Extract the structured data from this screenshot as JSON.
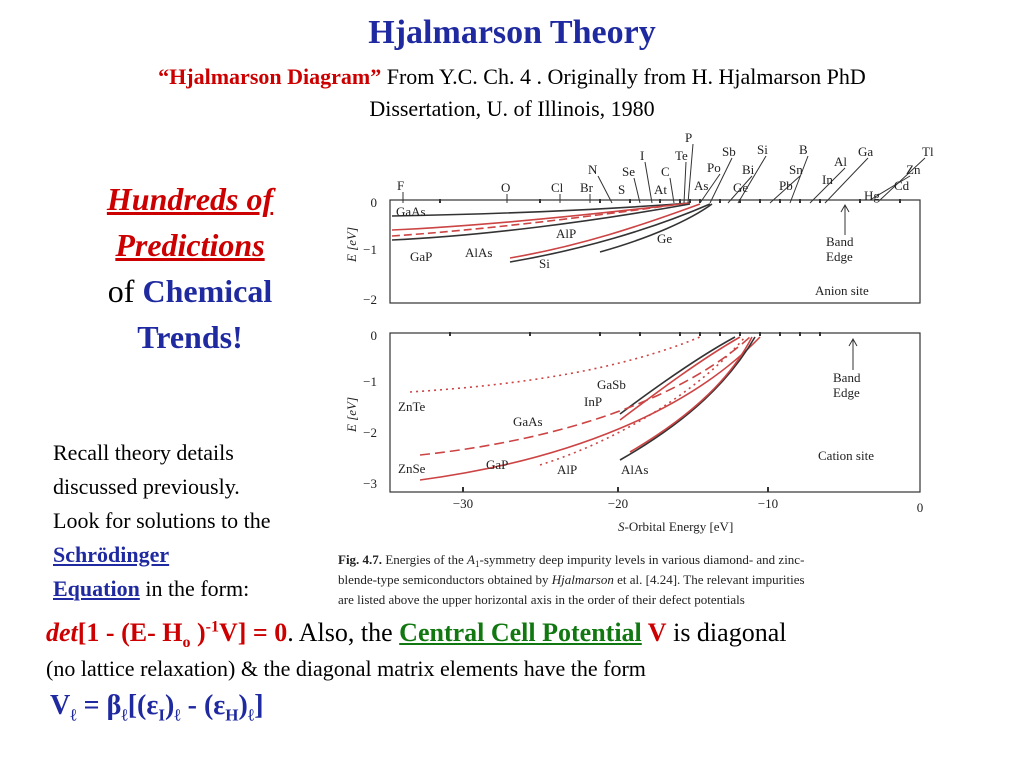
{
  "title": "Hjalmarson Theory",
  "subtitle": {
    "quote": "“Hjalmarson Diagram”",
    "line1": " From Y.C. Ch. 4 . Originally from H. Hjalmarson PhD",
    "line2": "Dissertation, U. of Illinois, 1980"
  },
  "heading": {
    "line1": "Hundreds of ",
    "line2": "Predictions",
    "of": "of ",
    "chemical": "Chemical",
    "trends": "Trends!"
  },
  "recall": {
    "lines": [
      "Recall theory details",
      "discussed previously.",
      "Look for solutions to the"
    ],
    "link1": "Schrödinger ",
    "link2": "Equation",
    "tail": " in the form:"
  },
  "equation": {
    "det": "det",
    "p1": "[1 - (E- H",
    "sub_o": "o",
    "p2": " )",
    "sup": "-1",
    "p3": "V] = 0",
    "p4": ". Also, the ",
    "ccp": "Central Cell Potential",
    "v": " V",
    "p5": " is diagonal"
  },
  "line2": "(no lattice relaxation) & the diagonal matrix elements have the form",
  "formula": [
    "V",
    "ℓ",
    " =  β",
    "ℓ",
    "[(ε",
    "I",
    ")",
    "ℓ",
    " - (ε",
    "H",
    ")",
    "ℓ",
    "]"
  ],
  "figure": {
    "elements": [
      "F",
      "O",
      "Cl",
      "Br",
      "N",
      "S",
      "Se",
      "I",
      "At",
      "C",
      "Te",
      "P",
      "As",
      "Po",
      "Sb",
      "Ge",
      "Bi",
      "Si",
      "Pb",
      "Sn",
      "B",
      "In",
      "Al",
      "Ga",
      "Hg",
      "Cd",
      "Zn",
      "Tl"
    ],
    "top": {
      "yticks": [
        "0",
        "−1",
        "−2"
      ],
      "ylabel": "E [eV]",
      "labels": [
        "GaAs",
        "GaP",
        "AlAs",
        "AlP",
        "Si",
        "Ge"
      ],
      "band_edge": [
        "Band",
        "Edge"
      ],
      "site": "Anion site"
    },
    "bottom": {
      "yticks": [
        "0",
        "−1",
        "−2",
        "−3"
      ],
      "ylabel": "E [eV]",
      "labels": [
        "GaSb",
        "InP",
        "ZnTe",
        "GaAs",
        "ZnSe",
        "GaP",
        "AlP",
        "AlAs"
      ],
      "band_edge": [
        "Band",
        "Edge"
      ],
      "site": "Cation site"
    },
    "xticks": [
      "−30",
      "−20",
      "−10",
      "0"
    ],
    "xlabel": {
      "s": "S",
      "rest": "-Orbital Energy [eV]"
    },
    "caption": {
      "fig": "Fig. 4.7.",
      "a": " Energies of the ",
      "A": "A",
      "one": "1",
      "b": "-symmetry deep impurity levels in various diamond- and zinc-",
      "line2a": "blende-type semiconductors obtained by ",
      "author": "Hjalmarson",
      "line2b": " et al. [4.24]. The relevant impurities",
      "line3": "are listed above the upper horizontal axis in the order of their defect potentials"
    }
  }
}
